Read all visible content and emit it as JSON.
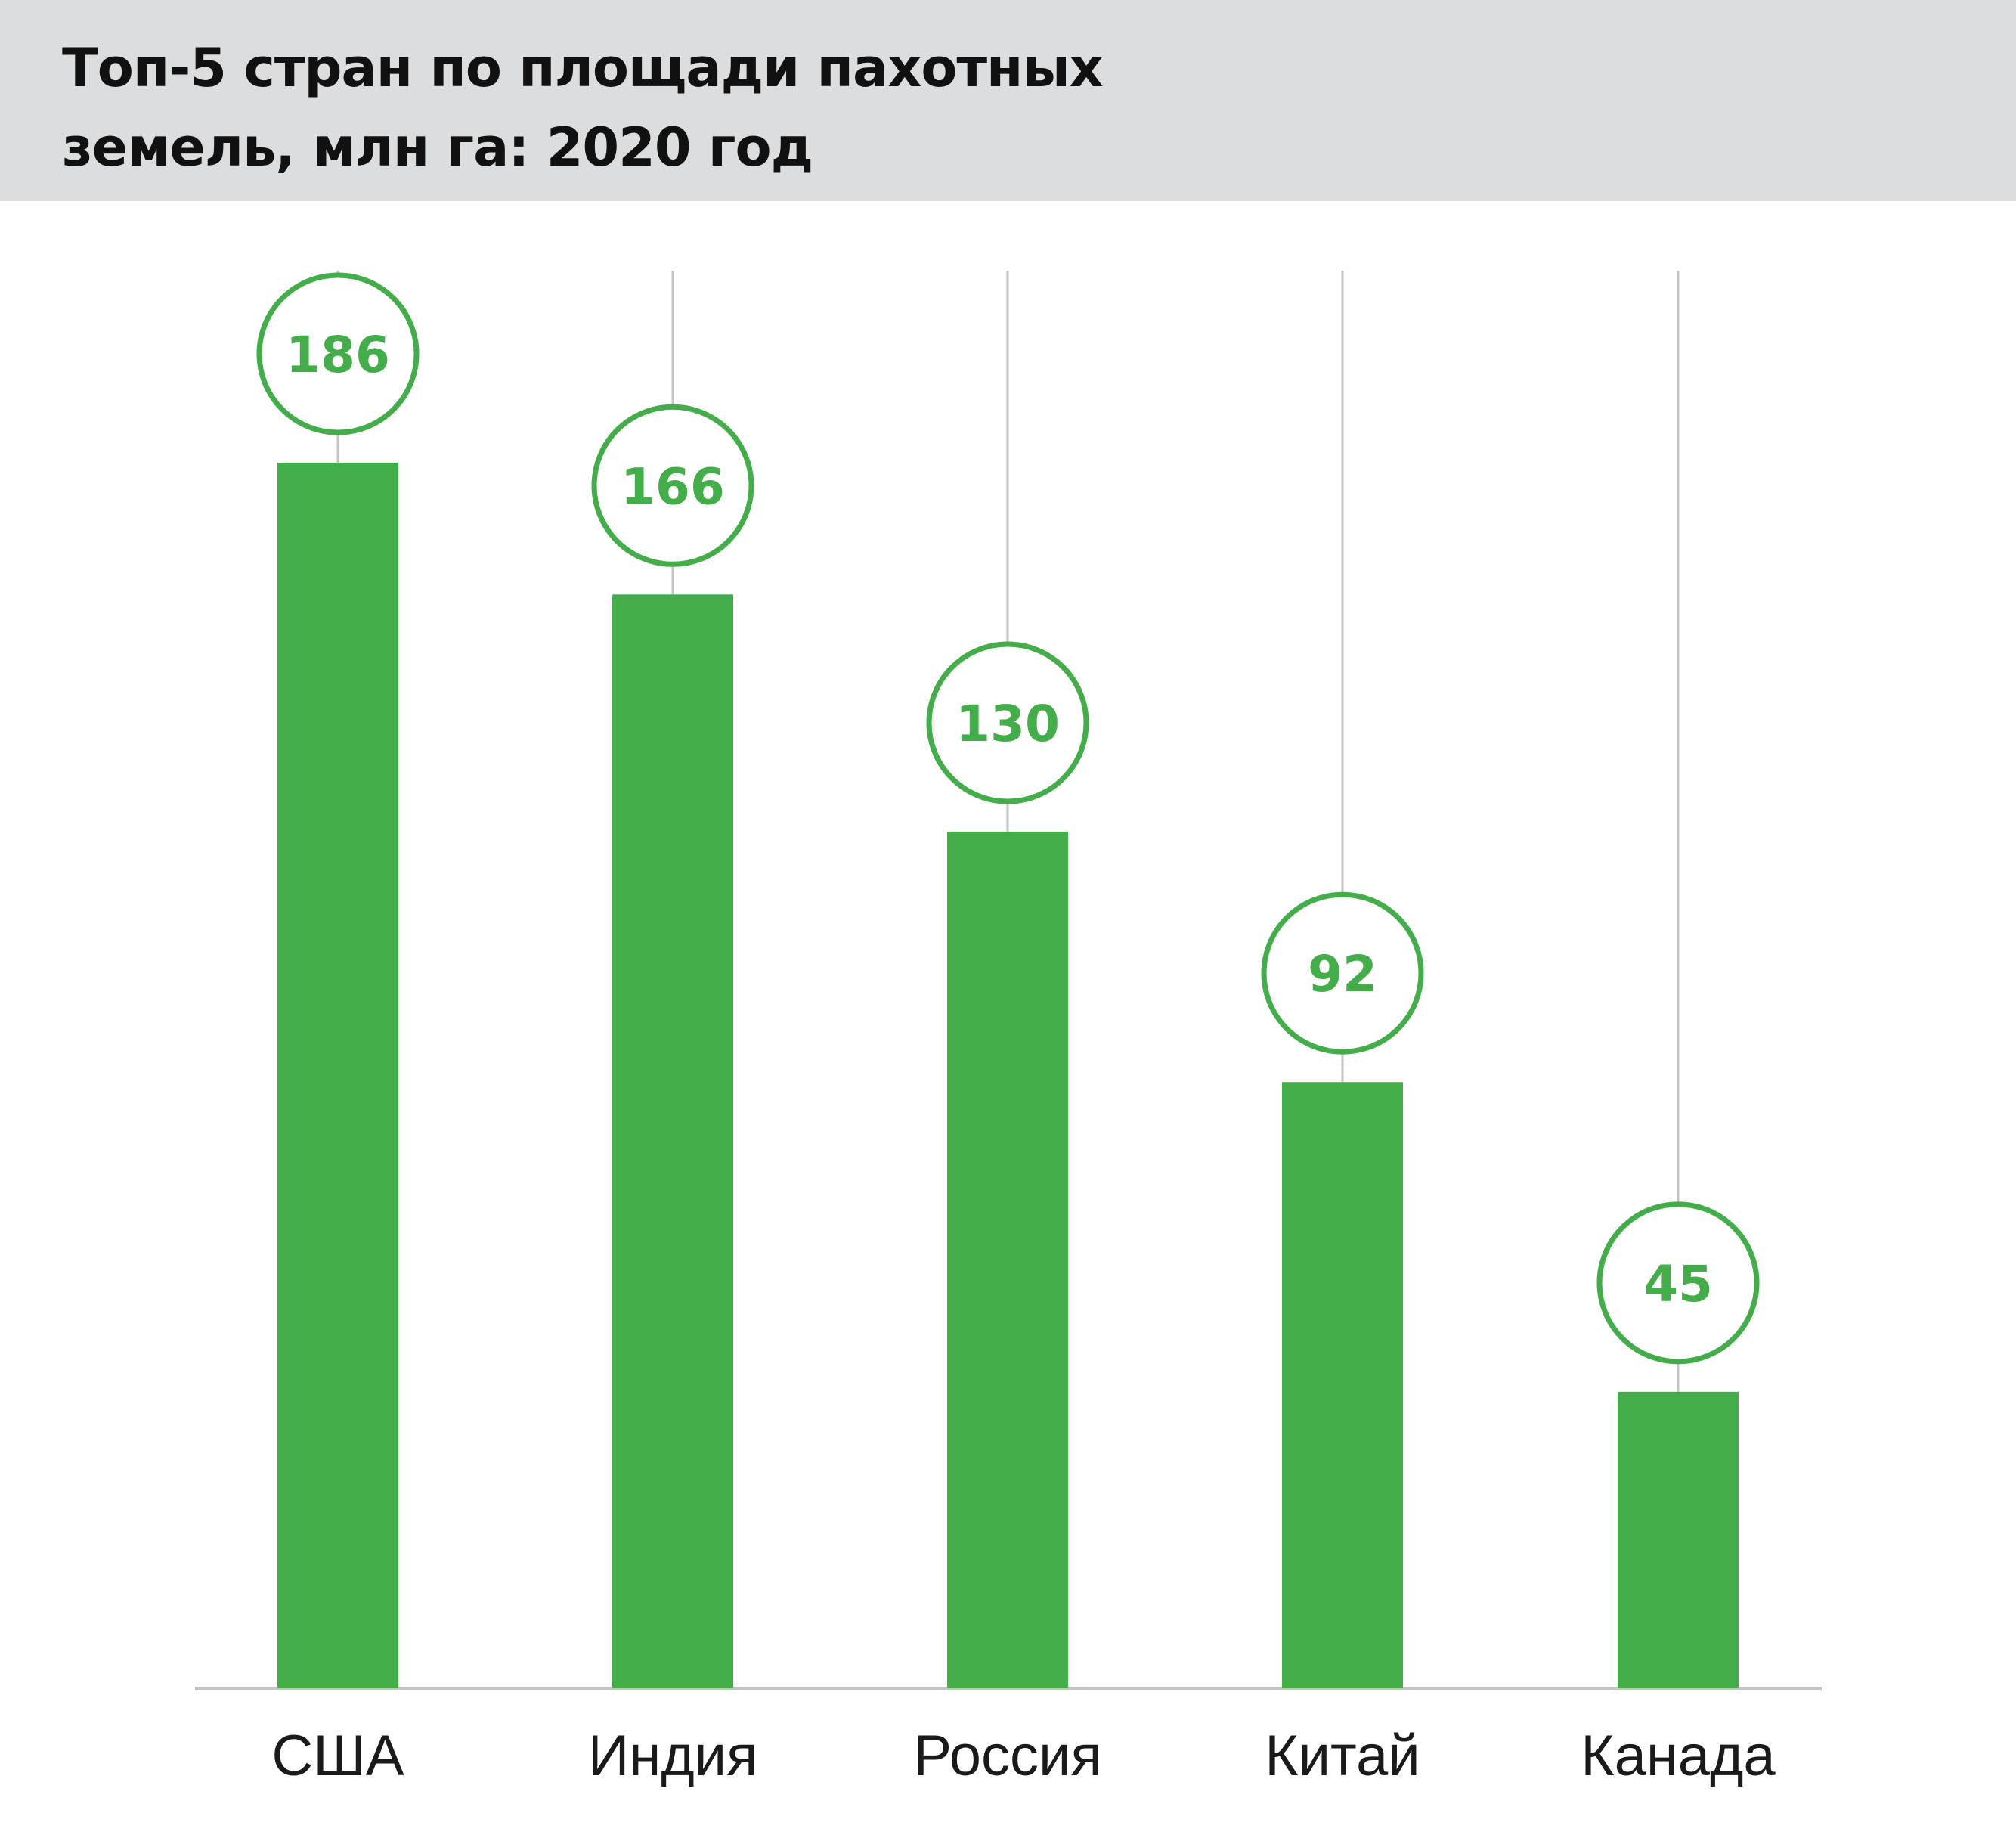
{
  "header": {
    "title": "Топ-5 стран по площади пахотных земель, млн га: 2020 год"
  },
  "colors": {
    "bar": "#43ad4a",
    "label_text": "#43ad4a",
    "guide_line": "#c4c4c4",
    "axis_line": "#c4c4c4",
    "header_bg": "#dcdddf"
  },
  "chart_data": {
    "type": "bar",
    "title": "Топ-5 стран по площади пахотных земель, млн га: 2020 год",
    "categories": [
      "США",
      "Индия",
      "Россия",
      "Китай",
      "Канада"
    ],
    "values": [
      186,
      166,
      130,
      92,
      45
    ],
    "value_labels": [
      "186",
      "166",
      "130",
      "92",
      "45"
    ],
    "xlabel": "",
    "ylabel": "",
    "ylim": [
      0,
      186
    ],
    "grid": false,
    "legend": "none",
    "data_labels": "circles above bars"
  }
}
